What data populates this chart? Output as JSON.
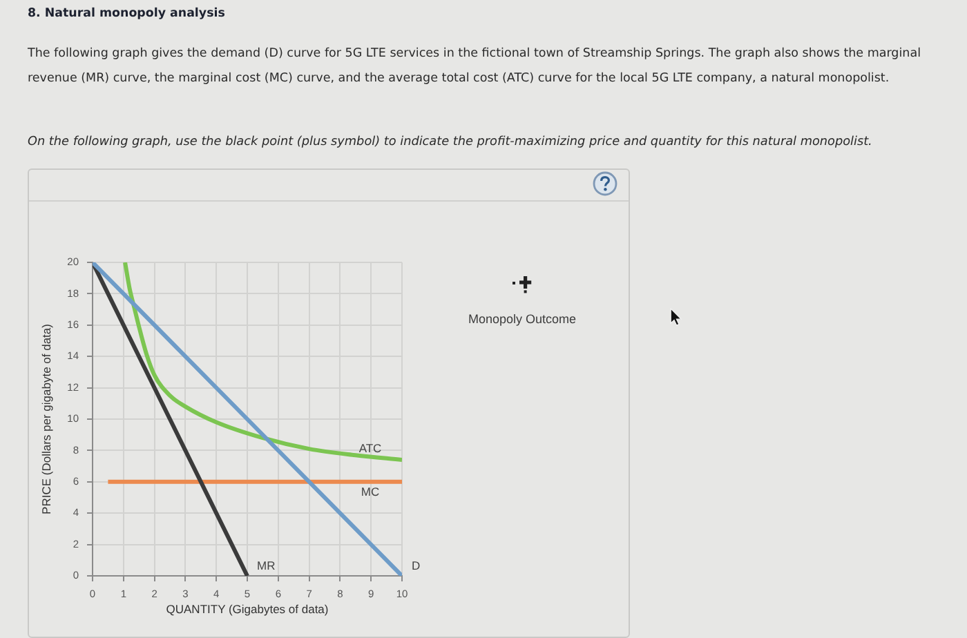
{
  "chart_data": {
    "type": "line",
    "title": "8. Natural monopoly analysis",
    "subtitle": "The following graph gives the demand (D) curve for 5G LTE services in the fictional town of Streamship Springs. The graph also shows the marginal revenue (MR) curve, the marginal cost (MC) curve, and the average total cost (ATC) curve for the local 5G LTE company, a natural monopolist.",
    "xlabel": "QUANTITY (Gigabytes of data)",
    "ylabel": "PRICE (Dollars per gigabyte of data)",
    "annotations": [
      "On the following graph, use the black point (plus symbol) to indicate the profit-maximizing price and quantity for this natural monopolist.",
      "Monopoly Outcome"
    ],
    "xlim": [
      0,
      10
    ],
    "ylim": [
      0,
      20
    ],
    "xticks": [
      0,
      1,
      2,
      3,
      4,
      5,
      6,
      7,
      8,
      9,
      10
    ],
    "yticks": [
      0,
      2,
      4,
      6,
      8,
      10,
      12,
      14,
      16,
      18,
      20
    ],
    "grid": true,
    "marker": "none",
    "series": [
      {
        "name": "D",
        "color": "#6e9cc8",
        "x": [
          0,
          10
        ],
        "values": [
          20,
          0
        ]
      },
      {
        "name": "MR",
        "color": "#3b3b3b",
        "x": [
          0,
          5
        ],
        "values": [
          20,
          0
        ]
      },
      {
        "name": "MC",
        "color": "#ec8a4e",
        "x": [
          0.5,
          10
        ],
        "values": [
          6,
          6
        ]
      },
      {
        "name": "ATC",
        "color": "#7cc551",
        "x": [
          1.05,
          1.2,
          1.35,
          1.5,
          1.75,
          2,
          2.5,
          3,
          4,
          5.5,
          7,
          8.5,
          10
        ],
        "values": [
          20,
          18.3,
          17.1,
          15.9,
          14.1,
          12.8,
          11.5,
          10.8,
          9.8,
          8.8,
          8.1,
          7.7,
          7.4
        ]
      }
    ]
  }
}
